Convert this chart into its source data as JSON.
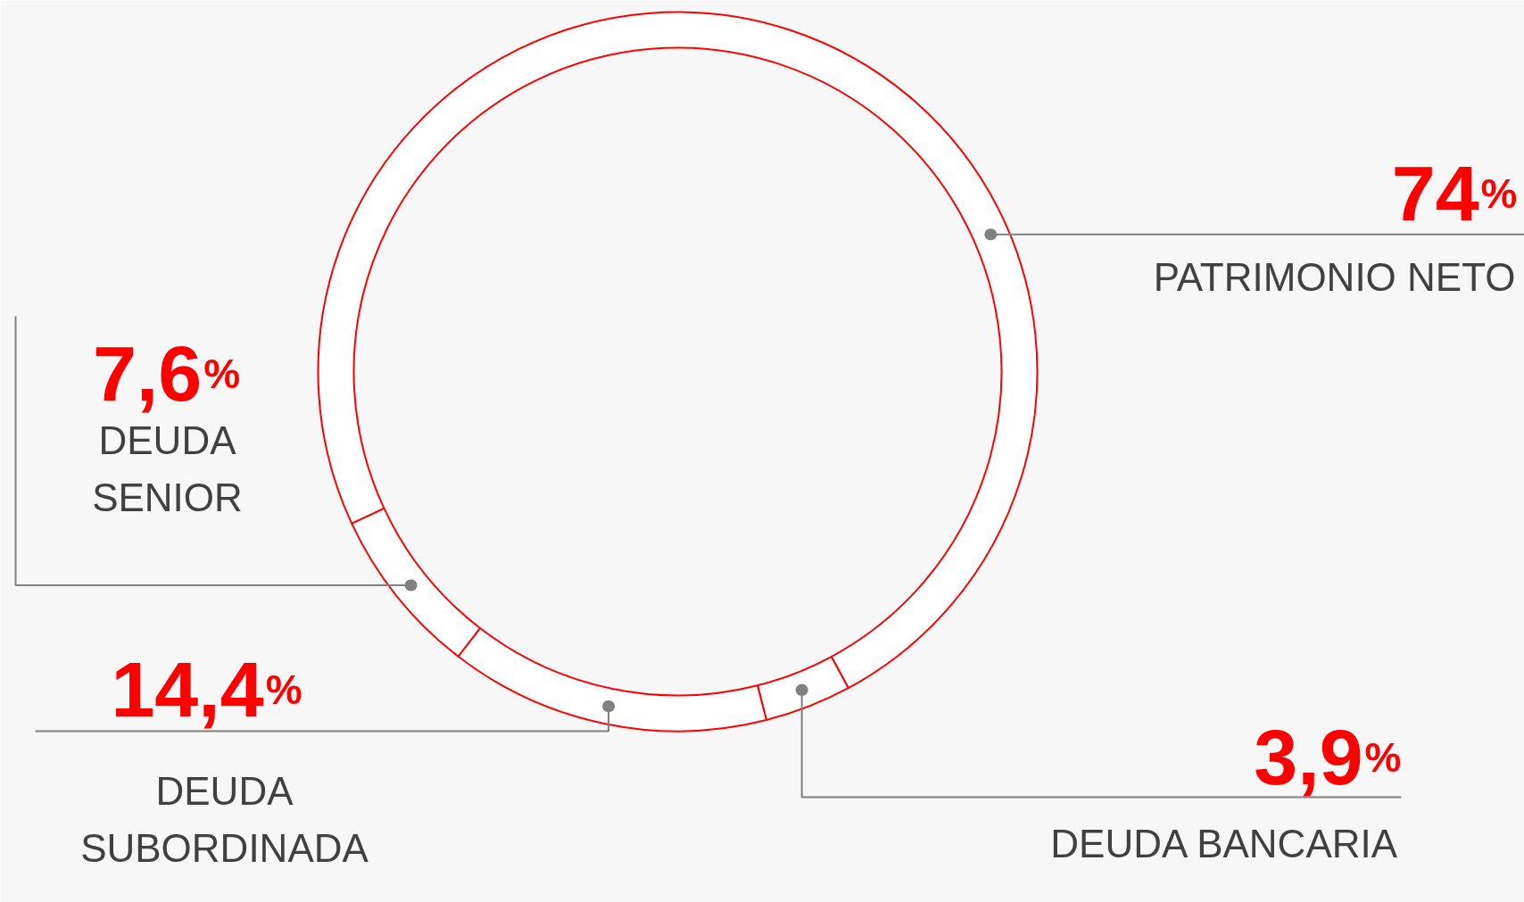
{
  "chart_data": {
    "type": "donut",
    "categories": [
      "PATRIMONIO NETO",
      "DEUDA BANCARIA",
      "DEUDA SUBORDINADA",
      "DEUDA SENIOR"
    ],
    "values": [
      74,
      3.9,
      14.4,
      7.6
    ],
    "colors": [
      "#ffffff",
      "#ffffff",
      "#ffffff",
      "#ffffff"
    ],
    "value_labels": [
      "74%",
      "3,9%",
      "14,4%",
      "7,6%"
    ]
  }
}
